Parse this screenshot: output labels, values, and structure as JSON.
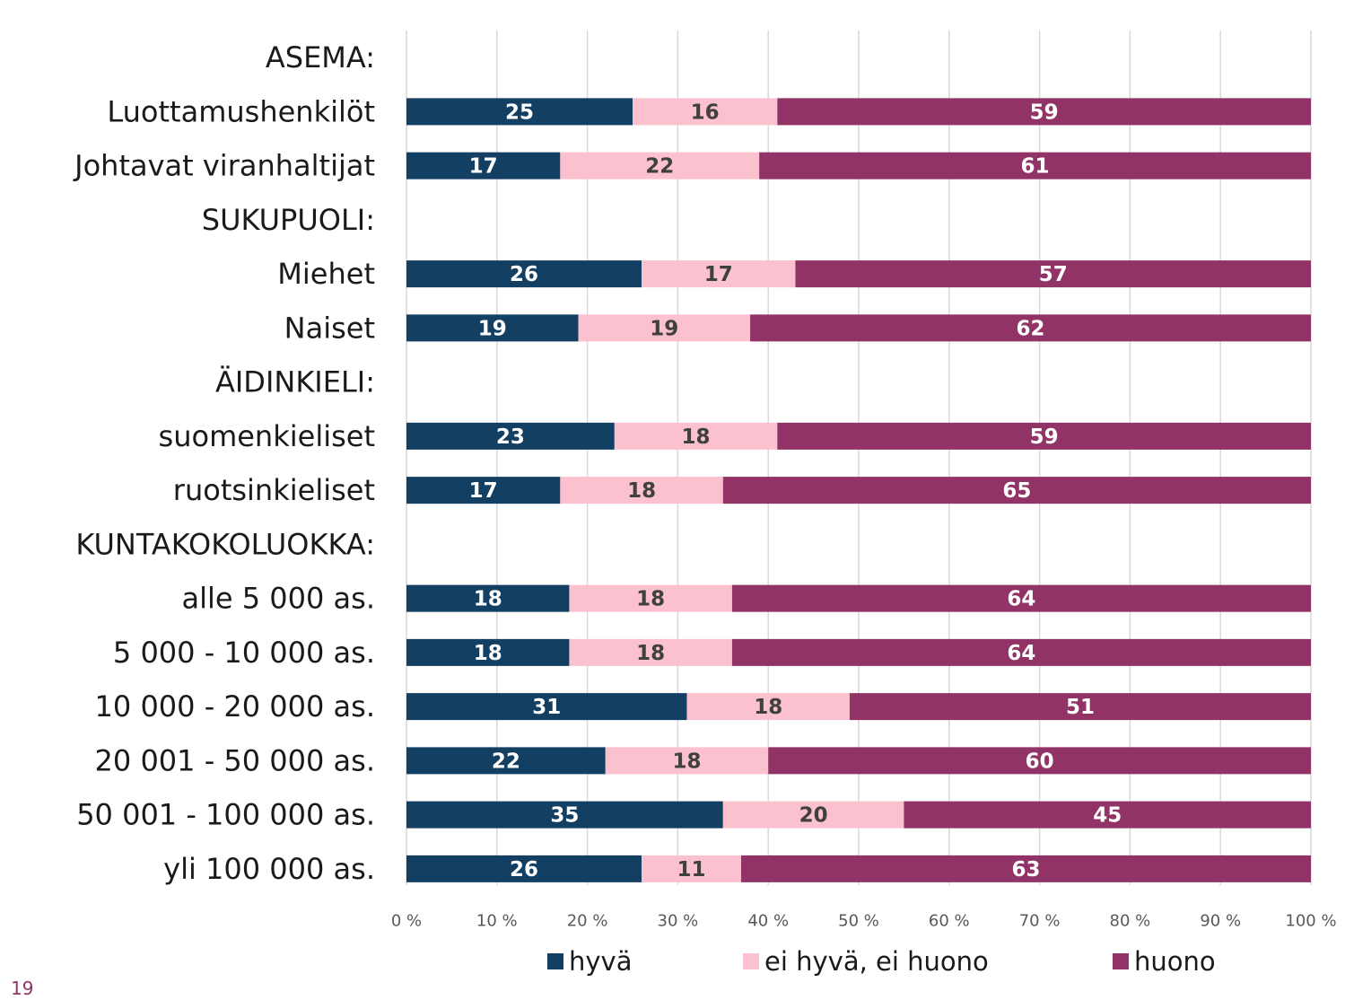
{
  "chart_data": {
    "type": "stacked_bar_horizontal",
    "categories": [
      "ASEMA:",
      "Luottamushenkilöt",
      "Johtavat viranhaltijat",
      "SUKUPUOLI:",
      "Miehet",
      "Naiset",
      "ÄIDINKIELI:",
      "suomenkieliset",
      "ruotsinkieliset",
      "KUNTAKOKOLUOKKA:",
      "alle 5 000 as.",
      "5 000 - 10 000 as.",
      "10 000 - 20 000 as.",
      "20 001 - 50 000 as.",
      "50 001 - 100 000 as.",
      "yli 100 000 as."
    ],
    "series": [
      {
        "name": "hyvä",
        "color": "#133f63",
        "values": [
          null,
          25,
          17,
          null,
          26,
          19,
          null,
          23,
          17,
          null,
          18,
          18,
          31,
          22,
          35,
          26
        ]
      },
      {
        "name": "ei hyvä, ei huono",
        "color": "#fcc1cf",
        "values": [
          null,
          16,
          22,
          null,
          17,
          19,
          null,
          18,
          18,
          null,
          18,
          18,
          18,
          18,
          20,
          11
        ]
      },
      {
        "name": "huono",
        "color": "#913366",
        "values": [
          null,
          59,
          61,
          null,
          57,
          62,
          null,
          59,
          65,
          null,
          64,
          64,
          51,
          60,
          45,
          63
        ]
      }
    ],
    "xlim": [
      0,
      100
    ],
    "xticks": [
      {
        "value": 0,
        "label": "0 %"
      },
      {
        "value": 10,
        "label": "10 %"
      },
      {
        "value": 20,
        "label": "20 %"
      },
      {
        "value": 30,
        "label": "30 %"
      },
      {
        "value": 40,
        "label": "40 %"
      },
      {
        "value": 50,
        "label": "50 %"
      },
      {
        "value": 60,
        "label": "60 %"
      },
      {
        "value": 70,
        "label": "70 %"
      },
      {
        "value": 80,
        "label": "80 %"
      },
      {
        "value": 90,
        "label": "90 %"
      },
      {
        "value": 100,
        "label": "100 %"
      }
    ],
    "grid": true,
    "legend": "bottom"
  },
  "page_number": "19"
}
